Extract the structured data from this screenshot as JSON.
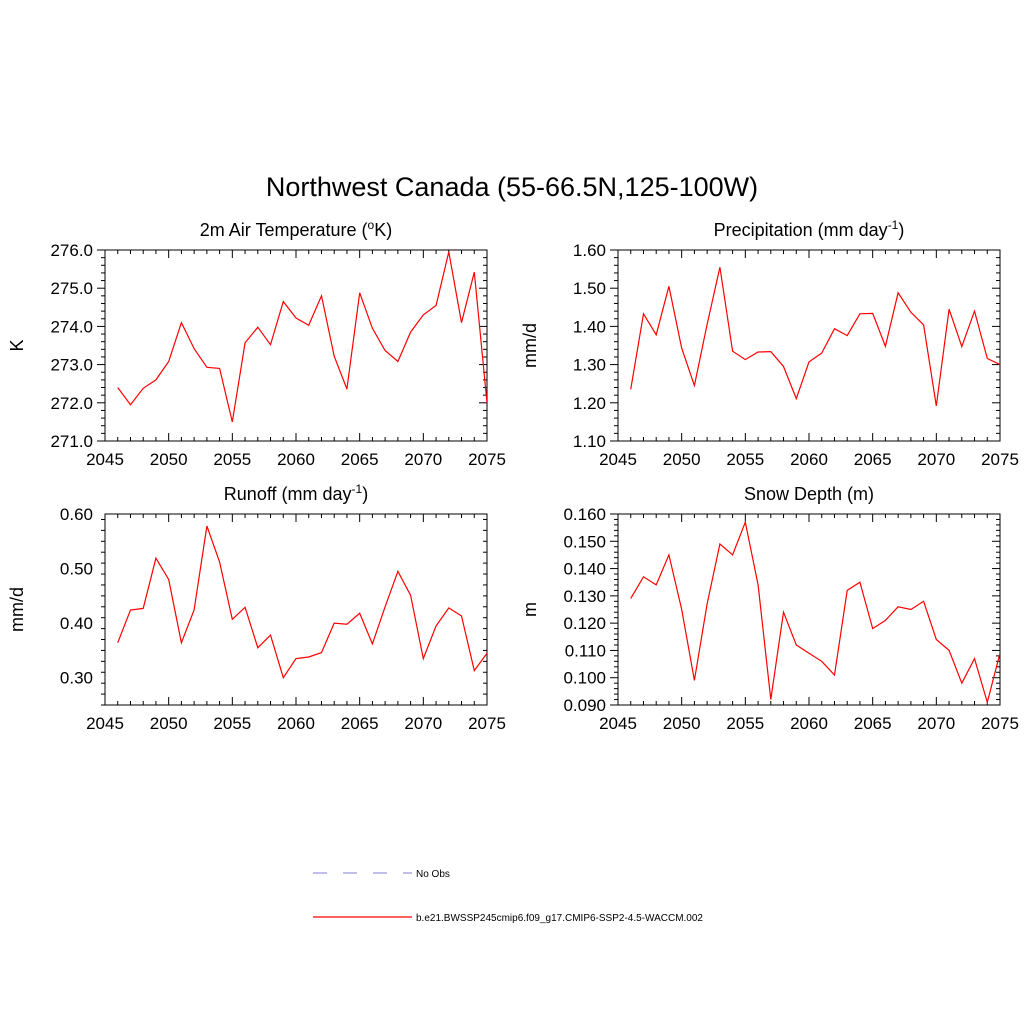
{
  "page_title": "Northwest Canada (55-66.5N,125-100W)",
  "legend": {
    "entries": [
      {
        "label": "No Obs",
        "color": "#9999dd",
        "style": "dashed"
      },
      {
        "label": "b.e21.BWSSP245cmip6.f09_g17.CMIP6-SSP2-4.5-WACCM.002",
        "color": "#ff0000",
        "style": "solid"
      }
    ]
  },
  "chart_data": [
    {
      "type": "line",
      "title": "2m Air Temperature (",
      "title_sup": "o",
      "title_after": "K)",
      "ylabel": "K",
      "xlim": [
        2045,
        2075
      ],
      "ylim": [
        271.0,
        276.0
      ],
      "xticks": [
        2045,
        2050,
        2055,
        2060,
        2065,
        2070,
        2075
      ],
      "xtick_labels": [
        "2045",
        "2050",
        "2055",
        "2060",
        "2065",
        "2070",
        "2075"
      ],
      "yticks": [
        271.0,
        272.0,
        273.0,
        274.0,
        275.0,
        276.0
      ],
      "ytick_labels": [
        "271.0",
        "272.0",
        "273.0",
        "274.0",
        "275.0",
        "276.0"
      ],
      "series": [
        {
          "color": "#ff0000",
          "x": [
            2046,
            2047,
            2048,
            2049,
            2050,
            2051,
            2052,
            2053,
            2054,
            2055,
            2056,
            2057,
            2058,
            2059,
            2060,
            2061,
            2062,
            2063,
            2064,
            2065,
            2066,
            2067,
            2068,
            2069,
            2070,
            2071,
            2072,
            2073,
            2074,
            2075
          ],
          "values": [
            272.4,
            271.95,
            272.38,
            272.6,
            273.08,
            274.1,
            273.42,
            272.93,
            272.9,
            271.5,
            273.57,
            273.98,
            273.52,
            274.65,
            274.22,
            274.03,
            274.8,
            273.22,
            272.36,
            274.88,
            273.95,
            273.37,
            273.08,
            273.85,
            274.3,
            274.55,
            275.95,
            274.1,
            275.42,
            272.0
          ]
        }
      ]
    },
    {
      "type": "line",
      "title": "Precipitation (mm day",
      "title_sup": "-1",
      "title_after": ")",
      "ylabel": "mm/d",
      "xlim": [
        2045,
        2075
      ],
      "ylim": [
        1.1,
        1.6
      ],
      "xticks": [
        2045,
        2050,
        2055,
        2060,
        2065,
        2070,
        2075
      ],
      "xtick_labels": [
        "2045",
        "2050",
        "2055",
        "2060",
        "2065",
        "2070",
        "2075"
      ],
      "yticks": [
        1.1,
        1.2,
        1.3,
        1.4,
        1.5,
        1.6
      ],
      "ytick_labels": [
        "1.10",
        "1.20",
        "1.30",
        "1.40",
        "1.50",
        "1.60"
      ],
      "series": [
        {
          "color": "#ff0000",
          "x": [
            2046,
            2047,
            2048,
            2049,
            2050,
            2051,
            2052,
            2053,
            2054,
            2055,
            2056,
            2057,
            2058,
            2059,
            2060,
            2061,
            2062,
            2063,
            2064,
            2065,
            2066,
            2067,
            2068,
            2069,
            2070,
            2071,
            2072,
            2073,
            2074,
            2075
          ],
          "values": [
            1.235,
            1.433,
            1.378,
            1.505,
            1.343,
            1.245,
            1.405,
            1.555,
            1.335,
            1.313,
            1.333,
            1.334,
            1.295,
            1.211,
            1.307,
            1.33,
            1.394,
            1.376,
            1.433,
            1.434,
            1.348,
            1.488,
            1.437,
            1.404,
            1.192,
            1.445,
            1.347,
            1.44,
            1.316,
            1.3
          ]
        }
      ]
    },
    {
      "type": "line",
      "title": "Runoff (mm day",
      "title_sup": "-1",
      "title_after": ")",
      "ylabel": "mm/d",
      "xlim": [
        2045,
        2075
      ],
      "ylim": [
        0.25,
        0.6
      ],
      "xticks": [
        2045,
        2050,
        2055,
        2060,
        2065,
        2070,
        2075
      ],
      "xtick_labels": [
        "2045",
        "2050",
        "2055",
        "2060",
        "2065",
        "2070",
        "2075"
      ],
      "yticks": [
        0.3,
        0.4,
        0.5,
        0.6
      ],
      "ytick_labels": [
        "0.30",
        "0.40",
        "0.50",
        "0.60"
      ],
      "series": [
        {
          "color": "#ff0000",
          "x": [
            2046,
            2047,
            2048,
            2049,
            2050,
            2051,
            2052,
            2053,
            2054,
            2055,
            2056,
            2057,
            2058,
            2059,
            2060,
            2061,
            2062,
            2063,
            2064,
            2065,
            2066,
            2067,
            2068,
            2069,
            2070,
            2071,
            2072,
            2073,
            2074,
            2075
          ],
          "values": [
            0.364,
            0.424,
            0.427,
            0.519,
            0.48,
            0.364,
            0.424,
            0.578,
            0.512,
            0.407,
            0.429,
            0.355,
            0.378,
            0.3,
            0.335,
            0.338,
            0.346,
            0.4,
            0.398,
            0.418,
            0.362,
            0.43,
            0.495,
            0.451,
            0.335,
            0.395,
            0.428,
            0.413,
            0.313,
            0.345
          ]
        }
      ]
    },
    {
      "type": "line",
      "title": "Snow Depth (m)",
      "title_sup": "",
      "title_after": "",
      "ylabel": "m",
      "xlim": [
        2045,
        2075
      ],
      "ylim": [
        0.09,
        0.16
      ],
      "xticks": [
        2045,
        2050,
        2055,
        2060,
        2065,
        2070,
        2075
      ],
      "xtick_labels": [
        "2045",
        "2050",
        "2055",
        "2060",
        "2065",
        "2070",
        "2075"
      ],
      "yticks": [
        0.09,
        0.1,
        0.11,
        0.12,
        0.13,
        0.14,
        0.15,
        0.16
      ],
      "ytick_labels": [
        "0.090",
        "0.100",
        "0.110",
        "0.120",
        "0.130",
        "0.140",
        "0.150",
        "0.160"
      ],
      "series": [
        {
          "color": "#ff0000",
          "x": [
            2046,
            2047,
            2048,
            2049,
            2050,
            2051,
            2052,
            2053,
            2054,
            2055,
            2056,
            2057,
            2058,
            2059,
            2060,
            2061,
            2062,
            2063,
            2064,
            2065,
            2066,
            2067,
            2068,
            2069,
            2070,
            2071,
            2072,
            2073,
            2074,
            2075
          ],
          "values": [
            0.129,
            0.137,
            0.134,
            0.145,
            0.125,
            0.099,
            0.127,
            0.149,
            0.145,
            0.157,
            0.134,
            0.092,
            0.124,
            0.112,
            0.109,
            0.106,
            0.101,
            0.132,
            0.135,
            0.118,
            0.121,
            0.126,
            0.125,
            0.128,
            0.114,
            0.11,
            0.098,
            0.107,
            0.091,
            0.109
          ]
        }
      ]
    }
  ]
}
